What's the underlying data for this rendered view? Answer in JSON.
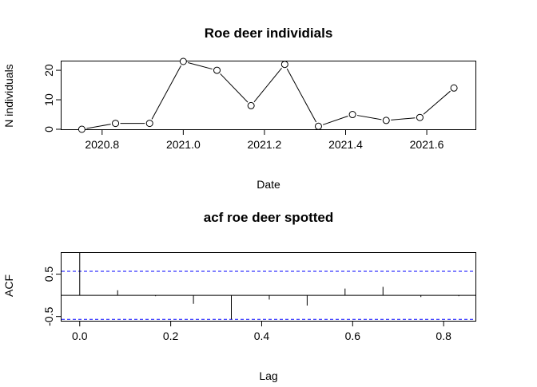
{
  "chart_data": [
    {
      "type": "line",
      "title": "Roe deer individials",
      "xlabel": "Date",
      "ylabel": "N individuals",
      "xlim": [
        2020.7,
        2021.72
      ],
      "ylim": [
        0,
        23
      ],
      "xticks": [
        "2020.8",
        "2021.0",
        "2021.2",
        "2021.4",
        "2021.6"
      ],
      "yticks": [
        "0",
        "10",
        "20"
      ],
      "grid": false,
      "markers": "open-circle",
      "series": [
        {
          "x": [
            2020.75,
            2020.833,
            2020.917,
            2021.0,
            2021.083,
            2021.167,
            2021.25,
            2021.333,
            2021.417,
            2021.5,
            2021.583,
            2021.667
          ],
          "values": [
            0,
            2,
            2,
            23,
            20,
            8,
            22,
            1,
            5,
            3,
            4,
            14
          ]
        }
      ]
    },
    {
      "type": "bar",
      "title": "acf roe deer spotted",
      "xlabel": "Lag",
      "ylabel": "ACF",
      "xlim": [
        -0.04,
        0.87
      ],
      "ylim": [
        -0.6,
        1.0
      ],
      "xticks": [
        "0.0",
        "0.2",
        "0.4",
        "0.6",
        "0.8"
      ],
      "yticks": [
        "-0.5",
        "0.5"
      ],
      "grid": false,
      "confidence_bounds": [
        -0.566,
        0.566
      ],
      "confidence_color": "#0000ff",
      "series": [
        {
          "x": [
            0,
            0.0833,
            0.1667,
            0.25,
            0.3333,
            0.4167,
            0.5,
            0.5833,
            0.6667,
            0.75,
            0.8333
          ],
          "values": [
            1.0,
            0.12,
            -0.02,
            -0.2,
            -0.57,
            -0.1,
            -0.24,
            0.16,
            0.2,
            -0.04,
            -0.02
          ]
        }
      ]
    }
  ]
}
